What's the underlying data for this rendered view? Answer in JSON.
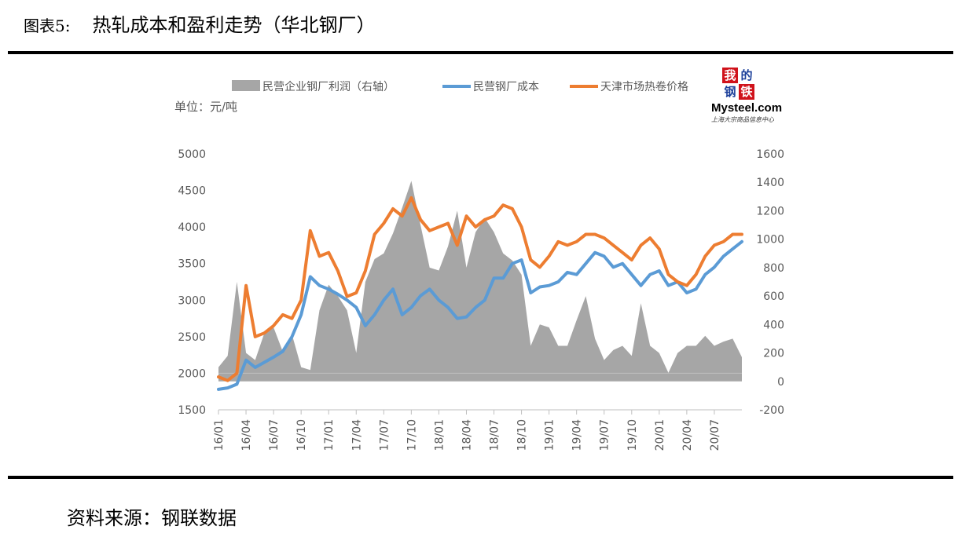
{
  "figure": {
    "label": "图表5:",
    "title": "热轧成本和盈利走势（华北钢厂）",
    "source": "资料来源：钢联数据"
  },
  "logo": {
    "chars": [
      "我",
      "的",
      "钢",
      "铁"
    ],
    "name": "Mysteel.com",
    "tagline": "上海大宗商品信息中心"
  },
  "colors": {
    "profit_area": "#a6a6a6",
    "cost_line": "#5b9bd5",
    "price_line": "#ed7d31"
  },
  "chart_data": {
    "type": "line",
    "unit_label": "单位：元/吨",
    "x": [
      "16/01",
      "16/02",
      "16/03",
      "16/04",
      "16/05",
      "16/06",
      "16/07",
      "16/08",
      "16/09",
      "16/10",
      "16/11",
      "16/12",
      "17/01",
      "17/02",
      "17/03",
      "17/04",
      "17/05",
      "17/06",
      "17/07",
      "17/08",
      "17/09",
      "17/10",
      "17/11",
      "17/12",
      "18/01",
      "18/02",
      "18/03",
      "18/04",
      "18/05",
      "18/06",
      "18/07",
      "18/08",
      "18/09",
      "18/10",
      "18/11",
      "18/12",
      "19/01",
      "19/02",
      "19/03",
      "19/04",
      "19/05",
      "19/06",
      "19/07",
      "19/08",
      "19/09",
      "19/10",
      "19/11",
      "19/12",
      "20/01",
      "20/02",
      "20/03",
      "20/04",
      "20/05",
      "20/06",
      "20/07",
      "20/08",
      "20/09",
      "20/10"
    ],
    "x_tick_labels": [
      "16/01",
      "16/04",
      "16/07",
      "16/10",
      "17/01",
      "17/04",
      "17/07",
      "17/10",
      "18/01",
      "18/04",
      "18/07",
      "18/10",
      "19/01",
      "19/04",
      "19/07",
      "19/10",
      "20/01",
      "20/04",
      "20/07"
    ],
    "y_left_range": [
      1500,
      5000
    ],
    "y_left_ticks": [
      "1500",
      "2000",
      "2500",
      "3000",
      "3500",
      "4000",
      "4500",
      "5000"
    ],
    "y_right_range": [
      -200,
      1600
    ],
    "y_right_ticks": [
      "-200",
      "0",
      "200",
      "400",
      "600",
      "800",
      "1000",
      "1200",
      "1400",
      "1600"
    ],
    "legend": [
      "民营企业钢厂利润（右轴）",
      "民营钢厂成本",
      "天津市场热卷价格"
    ],
    "legend_position": "top",
    "grid": false,
    "series": [
      {
        "name": "民营企业钢厂利润（右轴）",
        "type": "area",
        "axis": "right",
        "values": [
          100,
          180,
          700,
          200,
          150,
          340,
          380,
          210,
          330,
          100,
          80,
          500,
          680,
          600,
          500,
          200,
          700,
          860,
          900,
          1040,
          1220,
          1410,
          1100,
          800,
          780,
          950,
          1200,
          800,
          1050,
          1150,
          1050,
          900,
          850,
          750,
          250,
          400,
          380,
          250,
          250,
          430,
          600,
          300,
          150,
          220,
          250,
          180,
          550,
          250,
          200,
          60,
          200,
          250,
          250,
          320,
          250,
          280,
          300,
          170
        ]
      },
      {
        "name": "民营钢厂成本",
        "type": "line",
        "axis": "left",
        "values": [
          1780,
          1800,
          1850,
          2180,
          2080,
          2150,
          2220,
          2300,
          2500,
          2800,
          3320,
          3200,
          3150,
          3080,
          3000,
          2900,
          2650,
          2800,
          3000,
          3150,
          2800,
          2900,
          3060,
          3150,
          3000,
          2900,
          2750,
          2770,
          2900,
          3000,
          3300,
          3300,
          3500,
          3550,
          3100,
          3180,
          3200,
          3250,
          3380,
          3350,
          3500,
          3650,
          3600,
          3450,
          3500,
          3350,
          3200,
          3350,
          3400,
          3200,
          3250,
          3100,
          3150,
          3350,
          3450,
          3600,
          3700,
          3800
        ]
      },
      {
        "name": "天津市场热卷价格",
        "type": "line",
        "axis": "left",
        "values": [
          1950,
          1900,
          2000,
          3200,
          2500,
          2550,
          2650,
          2800,
          2750,
          3000,
          3950,
          3600,
          3650,
          3400,
          3050,
          3100,
          3400,
          3900,
          4050,
          4250,
          4150,
          4400,
          4100,
          3950,
          4000,
          4050,
          3750,
          4150,
          4000,
          4100,
          4150,
          4300,
          4250,
          4000,
          3550,
          3450,
          3600,
          3800,
          3750,
          3800,
          3900,
          3900,
          3850,
          3750,
          3650,
          3550,
          3750,
          3850,
          3700,
          3350,
          3250,
          3200,
          3350,
          3600,
          3750,
          3800,
          3900,
          3900
        ]
      }
    ]
  }
}
